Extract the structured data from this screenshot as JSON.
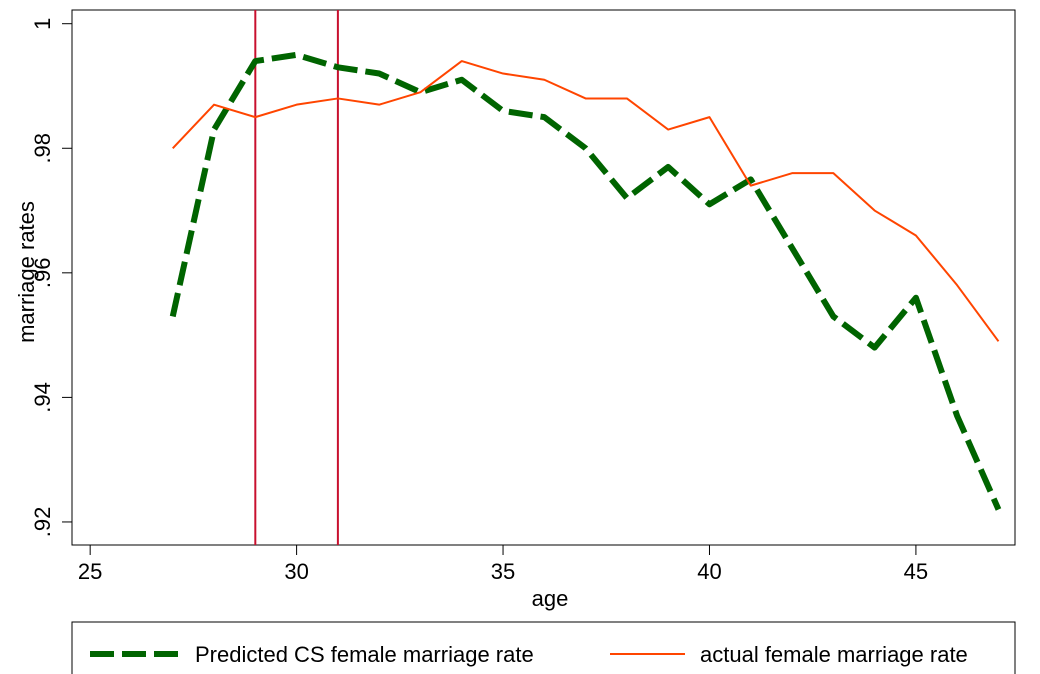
{
  "chart_data": {
    "type": "line",
    "x_label": "age",
    "y_label": "marriage rates",
    "x": [
      27,
      28,
      29,
      30,
      31,
      32,
      33,
      34,
      35,
      36,
      37,
      38,
      39,
      40,
      41,
      42,
      43,
      44,
      45,
      46,
      47
    ],
    "series": [
      {
        "name": "Predicted CS female marriage rate",
        "color": "#006400",
        "dashed": true,
        "values": [
          0.953,
          0.983,
          0.994,
          0.995,
          0.993,
          0.992,
          0.989,
          0.991,
          0.986,
          0.985,
          0.98,
          0.972,
          0.977,
          0.971,
          0.975,
          0.964,
          0.953,
          0.948,
          0.956,
          0.937,
          0.922
        ]
      },
      {
        "name": "actual female marriage rate",
        "color": "#ff4500",
        "dashed": false,
        "values": [
          0.98,
          0.987,
          0.985,
          0.987,
          0.988,
          0.987,
          0.989,
          0.994,
          0.992,
          0.991,
          0.988,
          0.988,
          0.983,
          0.985,
          0.974,
          0.976,
          0.976,
          0.97,
          0.966,
          0.958,
          0.949
        ]
      }
    ],
    "xlines": [
      29,
      31
    ],
    "xline_color": "#c8102e",
    "xlim": [
      24.56,
      47.4
    ],
    "xticks": [
      25,
      30,
      35,
      40,
      45
    ],
    "ylim": [
      0.9163,
      1.0022
    ],
    "yticks": [
      {
        "value": 0.92,
        "label": ".92"
      },
      {
        "value": 0.94,
        "label": ".94"
      },
      {
        "value": 0.96,
        "label": ".96"
      },
      {
        "value": 0.98,
        "label": ".98"
      },
      1
    ]
  }
}
